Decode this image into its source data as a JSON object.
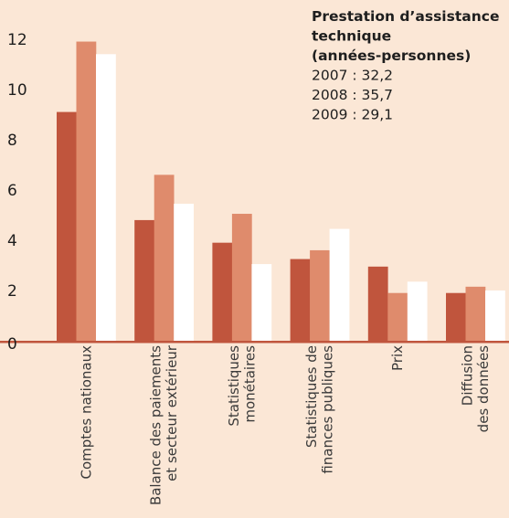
{
  "chart_data": {
    "type": "bar",
    "categories": [
      [
        "Comptes nationaux"
      ],
      [
        "Balance des paiements",
        "et secteur extérieur"
      ],
      [
        "Statistiques",
        "monétaires"
      ],
      [
        "Statistiques de",
        "finances publiques"
      ],
      [
        "Prix"
      ],
      [
        "Diffusion",
        "des données"
      ]
    ],
    "series": [
      {
        "values": [
          9.1,
          4.8,
          3.9,
          3.25,
          2.95,
          1.9
        ],
        "color": "#c0553d"
      },
      {
        "values": [
          11.9,
          6.6,
          5.05,
          3.6,
          1.9,
          2.15
        ],
        "color": "#df8b6c"
      },
      {
        "values": [
          11.4,
          5.45,
          3.05,
          4.45,
          2.35,
          2.0
        ],
        "color": "#ffffff"
      }
    ],
    "yticks": [
      0,
      2,
      4,
      6,
      8,
      10,
      12
    ],
    "ylim": [
      0,
      12.9
    ],
    "grid": false,
    "legend": {
      "title_lines": [
        "Prestation d’assistance",
        "technique",
        "(années-personnes)"
      ],
      "lines": [
        "2007 : 32,2",
        "2008 : 35,7",
        "2009 : 29,1"
      ]
    },
    "baseline_color": "#c0553d"
  }
}
